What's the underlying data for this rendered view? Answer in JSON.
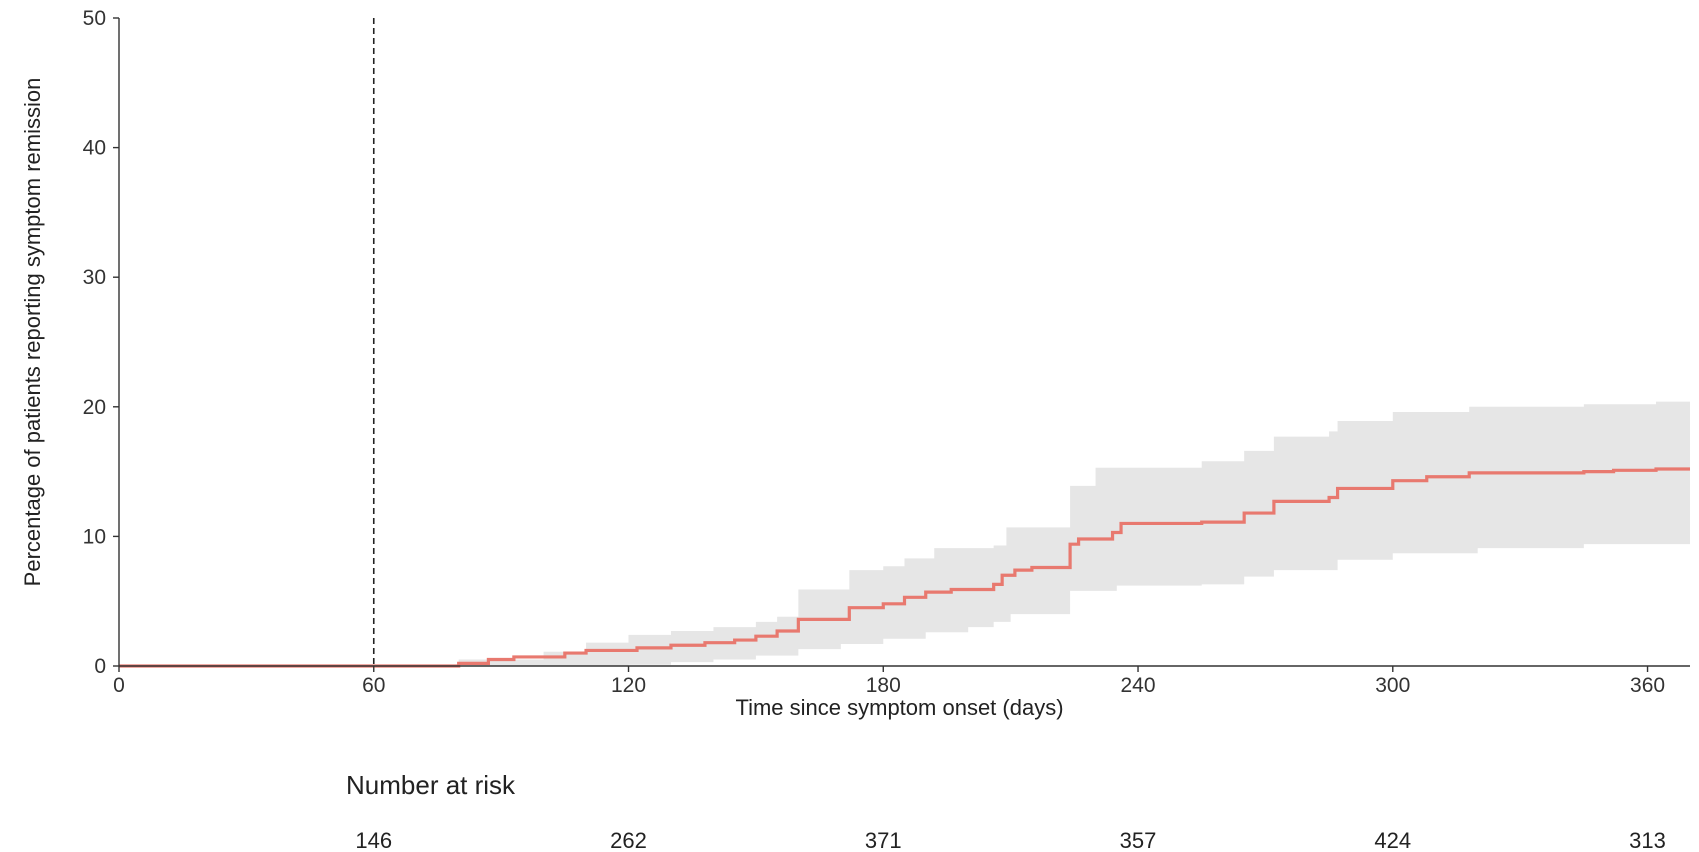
{
  "chart_data": {
    "type": "line",
    "subtype": "kaplan-meier step curve with confidence band",
    "xlabel": "Time since symptom onset (days)",
    "ylabel": "Percentage of patients reporting symptom remission",
    "xlim": [
      0,
      370
    ],
    "ylim": [
      0,
      50
    ],
    "x_ticks": [
      0,
      60,
      120,
      180,
      240,
      300,
      360
    ],
    "y_ticks": [
      0,
      10,
      20,
      30,
      40,
      50
    ],
    "grid": false,
    "reference_line": {
      "x": 60,
      "style": "dashed"
    },
    "series": [
      {
        "color": "#e8796f",
        "band_color": "#e6e6e6",
        "points": [
          [
            0,
            0
          ],
          [
            80,
            0
          ],
          [
            80,
            0.2
          ],
          [
            87,
            0.2
          ],
          [
            87,
            0.5
          ],
          [
            93,
            0.5
          ],
          [
            93,
            0.7
          ],
          [
            105,
            0.7
          ],
          [
            105,
            1.0
          ],
          [
            110,
            1.0
          ],
          [
            110,
            1.2
          ],
          [
            122,
            1.2
          ],
          [
            122,
            1.4
          ],
          [
            130,
            1.4
          ],
          [
            130,
            1.6
          ],
          [
            138,
            1.6
          ],
          [
            138,
            1.8
          ],
          [
            145,
            1.8
          ],
          [
            145,
            2.0
          ],
          [
            150,
            2.0
          ],
          [
            150,
            2.3
          ],
          [
            155,
            2.3
          ],
          [
            155,
            2.7
          ],
          [
            160,
            2.7
          ],
          [
            160,
            3.6
          ],
          [
            172,
            3.6
          ],
          [
            172,
            4.5
          ],
          [
            180,
            4.5
          ],
          [
            180,
            4.8
          ],
          [
            185,
            4.8
          ],
          [
            185,
            5.3
          ],
          [
            190,
            5.3
          ],
          [
            190,
            5.7
          ],
          [
            196,
            5.7
          ],
          [
            196,
            5.9
          ],
          [
            206,
            5.9
          ],
          [
            206,
            6.3
          ],
          [
            208,
            6.3
          ],
          [
            208,
            7.0
          ],
          [
            211,
            7.0
          ],
          [
            211,
            7.4
          ],
          [
            215,
            7.4
          ],
          [
            215,
            7.6
          ],
          [
            224,
            7.6
          ],
          [
            224,
            9.4
          ],
          [
            226,
            9.4
          ],
          [
            226,
            9.8
          ],
          [
            234,
            9.8
          ],
          [
            234,
            10.3
          ],
          [
            236,
            10.3
          ],
          [
            236,
            11.0
          ],
          [
            255,
            11.0
          ],
          [
            255,
            11.1
          ],
          [
            265,
            11.1
          ],
          [
            265,
            11.8
          ],
          [
            272,
            11.8
          ],
          [
            272,
            12.7
          ],
          [
            285,
            12.7
          ],
          [
            285,
            13.0
          ],
          [
            287,
            13.0
          ],
          [
            287,
            13.7
          ],
          [
            300,
            13.7
          ],
          [
            300,
            14.3
          ],
          [
            308,
            14.3
          ],
          [
            308,
            14.6
          ],
          [
            318,
            14.6
          ],
          [
            318,
            14.9
          ],
          [
            345,
            14.9
          ],
          [
            345,
            15.0
          ],
          [
            352,
            15.0
          ],
          [
            352,
            15.1
          ],
          [
            362,
            15.1
          ],
          [
            362,
            15.2
          ],
          [
            370,
            15.2
          ]
        ],
        "ci_lower": [
          [
            80,
            0
          ],
          [
            120,
            0.1
          ],
          [
            130,
            0.3
          ],
          [
            140,
            0.5
          ],
          [
            150,
            0.8
          ],
          [
            160,
            1.3
          ],
          [
            170,
            1.7
          ],
          [
            180,
            2.1
          ],
          [
            190,
            2.6
          ],
          [
            200,
            3.0
          ],
          [
            206,
            3.4
          ],
          [
            210,
            4.0
          ],
          [
            224,
            4.0
          ],
          [
            224,
            5.8
          ],
          [
            235,
            6.2
          ],
          [
            255,
            6.3
          ],
          [
            265,
            6.9
          ],
          [
            272,
            7.4
          ],
          [
            287,
            8.2
          ],
          [
            300,
            8.7
          ],
          [
            320,
            9.1
          ],
          [
            345,
            9.4
          ],
          [
            370,
            9.7
          ]
        ],
        "ci_upper": [
          [
            80,
            0.5
          ],
          [
            100,
            1.1
          ],
          [
            110,
            1.8
          ],
          [
            120,
            2.4
          ],
          [
            130,
            2.7
          ],
          [
            140,
            3.0
          ],
          [
            150,
            3.4
          ],
          [
            155,
            3.8
          ],
          [
            160,
            5.9
          ],
          [
            172,
            7.4
          ],
          [
            180,
            7.7
          ],
          [
            185,
            8.3
          ],
          [
            192,
            9.1
          ],
          [
            206,
            9.3
          ],
          [
            209,
            10.7
          ],
          [
            224,
            11.1
          ],
          [
            224,
            13.9
          ],
          [
            230,
            15.3
          ],
          [
            255,
            15.8
          ],
          [
            265,
            16.6
          ],
          [
            272,
            17.7
          ],
          [
            285,
            18.1
          ],
          [
            287,
            18.9
          ],
          [
            300,
            19.6
          ],
          [
            318,
            20.0
          ],
          [
            345,
            20.2
          ],
          [
            362,
            20.4
          ],
          [
            370,
            20.6
          ]
        ]
      }
    ],
    "number_at_risk": {
      "title": "Number at risk",
      "x": [
        60,
        120,
        180,
        240,
        300,
        360
      ],
      "values": [
        "146",
        "262",
        "371",
        "357",
        "424",
        "313"
      ]
    }
  }
}
